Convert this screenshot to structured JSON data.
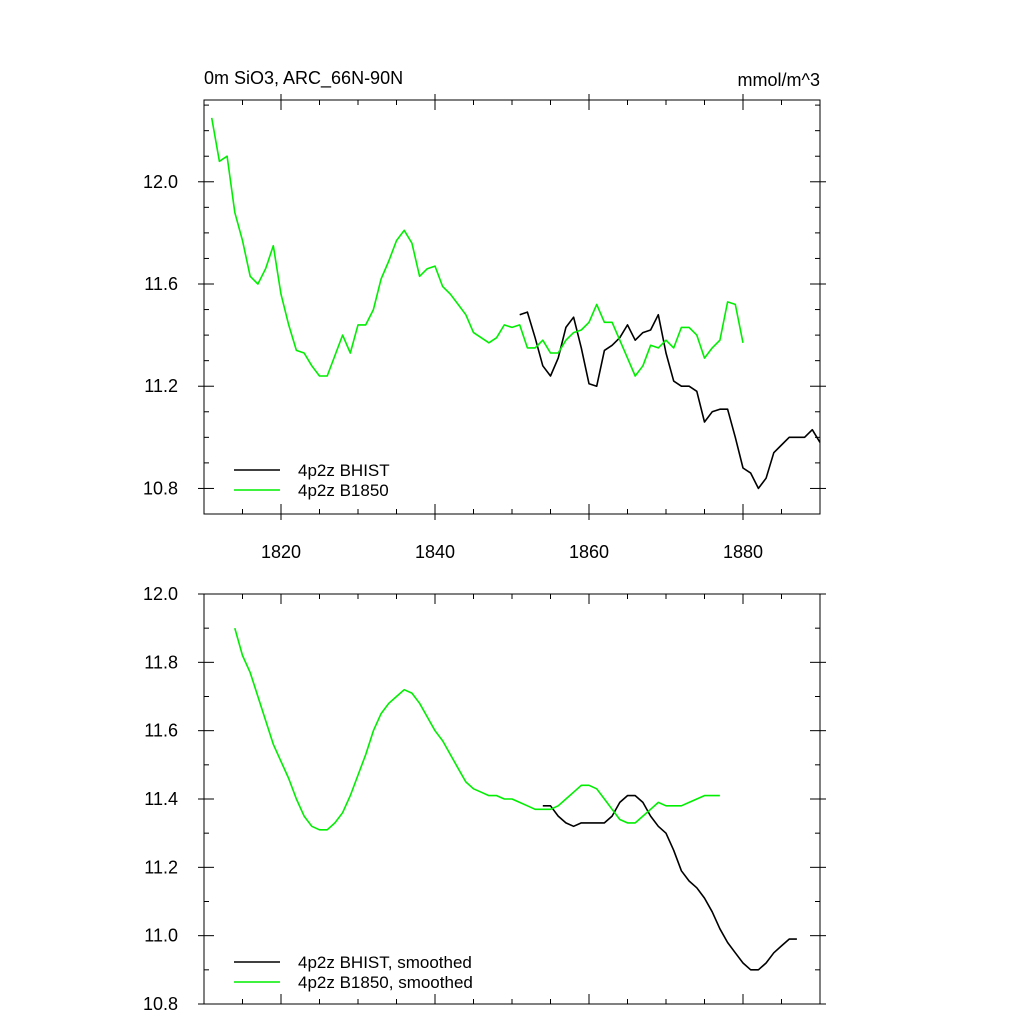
{
  "colors": {
    "bhist": "#000000",
    "b1850": "#00ee00"
  },
  "chart_data": [
    {
      "type": "line",
      "title": "0m SiO3, ARC_66N-90N",
      "units": "mmol/m^3",
      "xlim": [
        1810,
        1890
      ],
      "ylim": [
        10.7,
        12.32
      ],
      "x_ticks": [
        1820,
        1840,
        1860,
        1880
      ],
      "x_tick_labels": [
        "1820",
        "1840",
        "1860",
        "1880"
      ],
      "y_ticks": [
        10.8,
        11.2,
        11.6,
        12.0
      ],
      "y_tick_labels": [
        "10.8",
        "11.2",
        "11.6",
        "12.0"
      ],
      "grid": false,
      "legend_position": "bottom-left",
      "series": [
        {
          "name": "4p2z BHIST",
          "color": "#000000",
          "x": [
            1851,
            1852,
            1853,
            1854,
            1855,
            1856,
            1857,
            1858,
            1859,
            1860,
            1861,
            1862,
            1863,
            1864,
            1865,
            1866,
            1867,
            1868,
            1869,
            1870,
            1871,
            1872,
            1873,
            1874,
            1875,
            1876,
            1877,
            1878,
            1879,
            1880,
            1881,
            1882,
            1883,
            1884,
            1885,
            1886,
            1887,
            1888,
            1889,
            1890
          ],
          "y": [
            11.48,
            11.49,
            11.39,
            11.28,
            11.24,
            11.31,
            11.43,
            11.47,
            11.35,
            11.21,
            11.2,
            11.34,
            11.36,
            11.39,
            11.44,
            11.38,
            11.41,
            11.42,
            11.48,
            11.33,
            11.22,
            11.2,
            11.2,
            11.18,
            11.06,
            11.1,
            11.11,
            11.11,
            11.0,
            10.88,
            10.86,
            10.8,
            10.84,
            10.94,
            10.97,
            11.0,
            11.0,
            11.0,
            11.03,
            10.98
          ]
        },
        {
          "name": "4p2z B1850",
          "color": "#00ee00",
          "x": [
            1811,
            1812,
            1813,
            1814,
            1815,
            1816,
            1817,
            1818,
            1819,
            1820,
            1821,
            1822,
            1823,
            1824,
            1825,
            1826,
            1827,
            1828,
            1829,
            1830,
            1831,
            1832,
            1833,
            1834,
            1835,
            1836,
            1837,
            1838,
            1839,
            1840,
            1841,
            1842,
            1843,
            1844,
            1845,
            1846,
            1847,
            1848,
            1849,
            1850,
            1851,
            1852,
            1853,
            1854,
            1855,
            1856,
            1857,
            1858,
            1859,
            1860,
            1861,
            1862,
            1863,
            1864,
            1865,
            1866,
            1867,
            1868,
            1869,
            1870,
            1871,
            1872,
            1873,
            1874,
            1875,
            1876,
            1877,
            1878,
            1879,
            1880
          ],
          "y": [
            12.25,
            12.08,
            12.1,
            11.88,
            11.77,
            11.63,
            11.6,
            11.66,
            11.75,
            11.56,
            11.44,
            11.34,
            11.33,
            11.28,
            11.24,
            11.24,
            11.32,
            11.4,
            11.33,
            11.44,
            11.44,
            11.5,
            11.62,
            11.69,
            11.77,
            11.81,
            11.76,
            11.63,
            11.66,
            11.67,
            11.59,
            11.56,
            11.52,
            11.48,
            11.41,
            11.39,
            11.37,
            11.39,
            11.44,
            11.43,
            11.44,
            11.35,
            11.35,
            11.38,
            11.33,
            11.33,
            11.38,
            11.41,
            11.42,
            11.45,
            11.52,
            11.45,
            11.45,
            11.38,
            11.31,
            11.24,
            11.28,
            11.36,
            11.35,
            11.38,
            11.35,
            11.43,
            11.43,
            11.4,
            11.31,
            11.35,
            11.38,
            11.53,
            11.52,
            11.37
          ]
        }
      ]
    },
    {
      "type": "line",
      "xlim": [
        1810,
        1890
      ],
      "ylim": [
        10.8,
        12.0
      ],
      "x_ticks": [
        1820,
        1840,
        1860,
        1880
      ],
      "y_ticks": [
        10.8,
        11.0,
        11.2,
        11.4,
        11.6,
        11.8,
        12.0
      ],
      "y_tick_labels": [
        "10.8",
        "11.0",
        "11.2",
        "11.4",
        "11.6",
        "11.8",
        "12.0"
      ],
      "grid": false,
      "legend_position": "bottom-left",
      "series": [
        {
          "name": "4p2z BHIST, smoothed",
          "color": "#000000",
          "x": [
            1854,
            1855,
            1856,
            1857,
            1858,
            1859,
            1860,
            1861,
            1862,
            1863,
            1864,
            1865,
            1866,
            1867,
            1868,
            1869,
            1870,
            1871,
            1872,
            1873,
            1874,
            1875,
            1876,
            1877,
            1878,
            1879,
            1880,
            1881,
            1882,
            1883,
            1884,
            1885,
            1886,
            1887
          ],
          "y": [
            11.38,
            11.38,
            11.35,
            11.33,
            11.32,
            11.33,
            11.33,
            11.33,
            11.33,
            11.35,
            11.39,
            11.41,
            11.41,
            11.39,
            11.35,
            11.32,
            11.3,
            11.25,
            11.19,
            11.16,
            11.14,
            11.11,
            11.07,
            11.02,
            10.98,
            10.95,
            10.92,
            10.9,
            10.9,
            10.92,
            10.95,
            10.97,
            10.99,
            10.99
          ]
        },
        {
          "name": "4p2z B1850, smoothed",
          "color": "#00ee00",
          "x": [
            1814,
            1815,
            1816,
            1817,
            1818,
            1819,
            1820,
            1821,
            1822,
            1823,
            1824,
            1825,
            1826,
            1827,
            1828,
            1829,
            1830,
            1831,
            1832,
            1833,
            1834,
            1835,
            1836,
            1837,
            1838,
            1839,
            1840,
            1841,
            1842,
            1843,
            1844,
            1845,
            1846,
            1847,
            1848,
            1849,
            1850,
            1851,
            1852,
            1853,
            1854,
            1855,
            1856,
            1857,
            1858,
            1859,
            1860,
            1861,
            1862,
            1863,
            1864,
            1865,
            1866,
            1867,
            1868,
            1869,
            1870,
            1871,
            1872,
            1873,
            1874,
            1875,
            1876,
            1877
          ],
          "y": [
            11.9,
            11.82,
            11.77,
            11.7,
            11.63,
            11.56,
            11.51,
            11.46,
            11.4,
            11.35,
            11.32,
            11.31,
            11.31,
            11.33,
            11.36,
            11.41,
            11.47,
            11.53,
            11.6,
            11.65,
            11.68,
            11.7,
            11.72,
            11.71,
            11.68,
            11.64,
            11.6,
            11.57,
            11.53,
            11.49,
            11.45,
            11.43,
            11.42,
            11.41,
            11.41,
            11.4,
            11.4,
            11.39,
            11.38,
            11.37,
            11.37,
            11.37,
            11.38,
            11.4,
            11.42,
            11.44,
            11.44,
            11.43,
            11.4,
            11.37,
            11.34,
            11.33,
            11.33,
            11.35,
            11.37,
            11.39,
            11.38,
            11.38,
            11.38,
            11.39,
            11.4,
            11.41,
            11.41,
            11.41
          ]
        }
      ]
    }
  ]
}
